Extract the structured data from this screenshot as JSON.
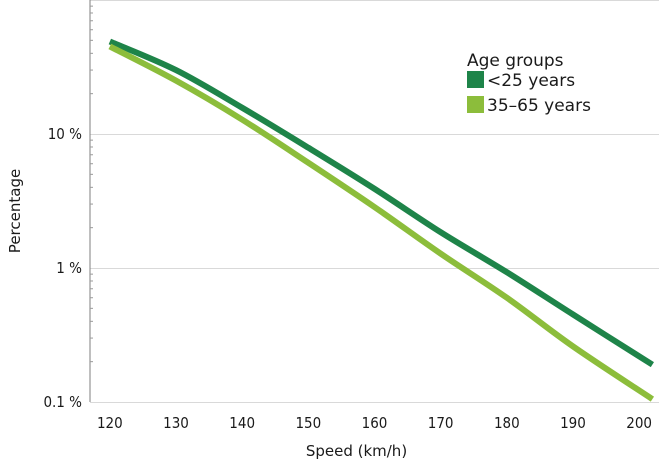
{
  "chart_data": {
    "type": "line",
    "xlabel": "Speed (km/h)",
    "ylabel": "Percentage",
    "x_scale": "linear",
    "y_scale": "log",
    "xlim": [
      117,
      203
    ],
    "ylim": [
      0.1,
      100
    ],
    "x_ticks": [
      120,
      130,
      140,
      150,
      160,
      170,
      180,
      190,
      200
    ],
    "x_tick_labels": [
      "120",
      "130",
      "140",
      "150",
      "160",
      "170",
      "180",
      "190",
      "200"
    ],
    "y_ticks": [
      0.1,
      1,
      10
    ],
    "y_tick_labels": [
      "0.1 %",
      "1 %",
      "10 %"
    ],
    "grid": {
      "x": false,
      "y": true
    },
    "legend": {
      "title": "Age groups",
      "position": "top-right",
      "entries": [
        "<25 years",
        "35–65 years"
      ]
    },
    "series": [
      {
        "name": "<25 years",
        "color": "#1e8449",
        "x": [
          120,
          130,
          140,
          150,
          160,
          170,
          180,
          190,
          202
        ],
        "y": [
          49,
          30,
          15.7,
          7.9,
          3.9,
          1.85,
          0.93,
          0.45,
          0.19
        ]
      },
      {
        "name": "35–65 years",
        "color": "#8cbd3b",
        "x": [
          120,
          130,
          140,
          150,
          160,
          170,
          180,
          190,
          202
        ],
        "y": [
          45,
          25,
          12.8,
          6.1,
          2.85,
          1.28,
          0.6,
          0.26,
          0.105
        ]
      }
    ]
  }
}
